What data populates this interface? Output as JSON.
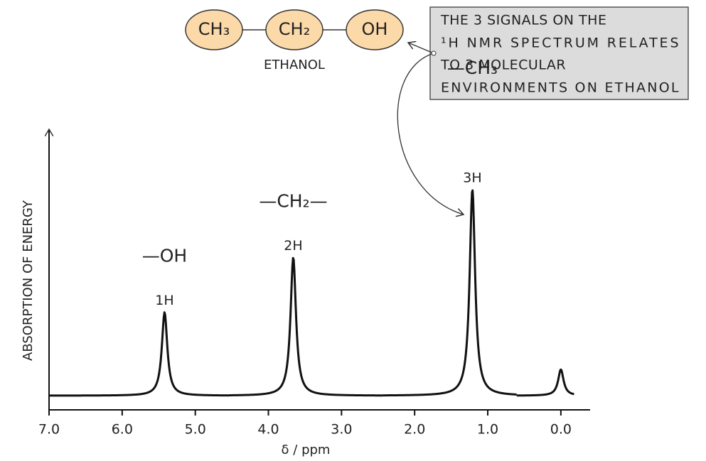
{
  "molecule": {
    "nodes": [
      "CH₃",
      "CH₂",
      "OH"
    ],
    "label": "ETHANOL"
  },
  "callout": {
    "lines": [
      "THE 3 SIGNALS ON THE",
      "¹H NMR  SPECTRUM  RELATES",
      "TO 3 MOLECULAR",
      "ENVIRONMENTS ON ETHANOL"
    ]
  },
  "chart_data": {
    "type": "nmr",
    "x_label": "δ / ppm",
    "y_label": "ABSORPTION OF ENERGY",
    "x": [
      5.42,
      3.66,
      1.21,
      0.0
    ],
    "values": [
      32,
      53,
      79,
      10
    ],
    "peak_labels": [
      "1H",
      "2H",
      "3H",
      null
    ],
    "groups": [
      "—OH",
      "—CH₂—",
      "—CH₃",
      null
    ],
    "color": "#111",
    "xlim": [
      7.0,
      -0.4
    ],
    "ylim": [
      0,
      100
    ],
    "xticks": [
      {
        "value": 7,
        "label": "7.0"
      },
      {
        "value": 6,
        "label": "6.0"
      },
      {
        "value": 5,
        "label": "5.0"
      },
      {
        "value": 4,
        "label": "4.0"
      },
      {
        "value": 3,
        "label": "3.0"
      },
      {
        "value": 2,
        "label": "2.0"
      },
      {
        "value": 1,
        "label": "1.0"
      },
      {
        "value": 0,
        "label": "0.0"
      }
    ]
  }
}
